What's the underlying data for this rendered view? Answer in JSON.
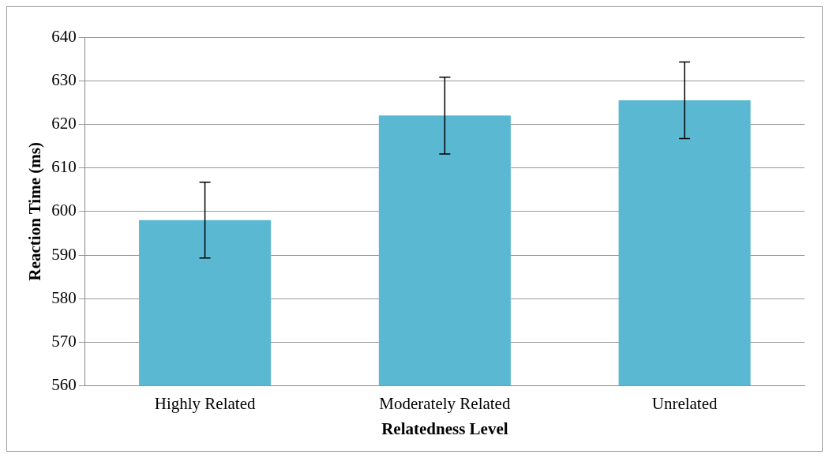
{
  "chart_data": {
    "type": "bar",
    "xlabel": "Relatedness Level",
    "ylabel": "Reaction Time (ms)",
    "categories": [
      "Highly Related",
      "Moderately Related",
      "Unrelated"
    ],
    "values": [
      598,
      622,
      625.5
    ],
    "errors": [
      8.7,
      8.8,
      8.8
    ],
    "color": "#5bb8d3",
    "ylim": [
      560,
      640
    ],
    "yticks": [
      560,
      570,
      580,
      590,
      600,
      610,
      620,
      630,
      640
    ],
    "grid": "y",
    "legend": false
  }
}
